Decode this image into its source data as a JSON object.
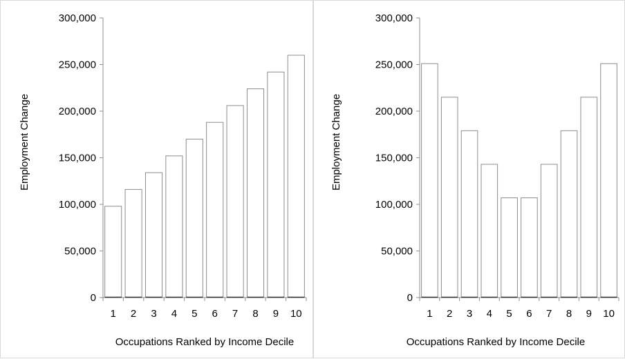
{
  "chart_data": [
    {
      "type": "bar",
      "title": "",
      "xlabel": "Occupations Ranked by Income Decile",
      "ylabel": "Employment Change",
      "categories": [
        "1",
        "2",
        "3",
        "4",
        "5",
        "6",
        "7",
        "8",
        "9",
        "10"
      ],
      "values": [
        98000,
        116000,
        134000,
        152000,
        170000,
        188000,
        206000,
        224000,
        242000,
        260000
      ],
      "ylim": [
        0,
        300000
      ],
      "yticks": [
        0,
        50000,
        100000,
        150000,
        200000,
        250000,
        300000
      ],
      "ytick_labels": [
        "0",
        "50,000",
        "100,000",
        "150,000",
        "200,000",
        "250,000",
        "300,000"
      ],
      "bar_fill": "#ffffff",
      "bar_stroke": "#8c8c8c",
      "grid": false,
      "legend": "none"
    },
    {
      "type": "bar",
      "title": "",
      "xlabel": "Occupations Ranked by Income Decile",
      "ylabel": "Employment Change",
      "categories": [
        "1",
        "2",
        "3",
        "4",
        "5",
        "6",
        "7",
        "8",
        "9",
        "10"
      ],
      "values": [
        251000,
        215000,
        179000,
        143000,
        107000,
        107000,
        143000,
        179000,
        215000,
        251000
      ],
      "ylim": [
        0,
        300000
      ],
      "yticks": [
        0,
        50000,
        100000,
        150000,
        200000,
        250000,
        300000
      ],
      "ytick_labels": [
        "0",
        "50,000",
        "100,000",
        "150,000",
        "200,000",
        "250,000",
        "300,000"
      ],
      "bar_fill": "#ffffff",
      "bar_stroke": "#8c8c8c",
      "grid": false,
      "legend": "none"
    }
  ]
}
